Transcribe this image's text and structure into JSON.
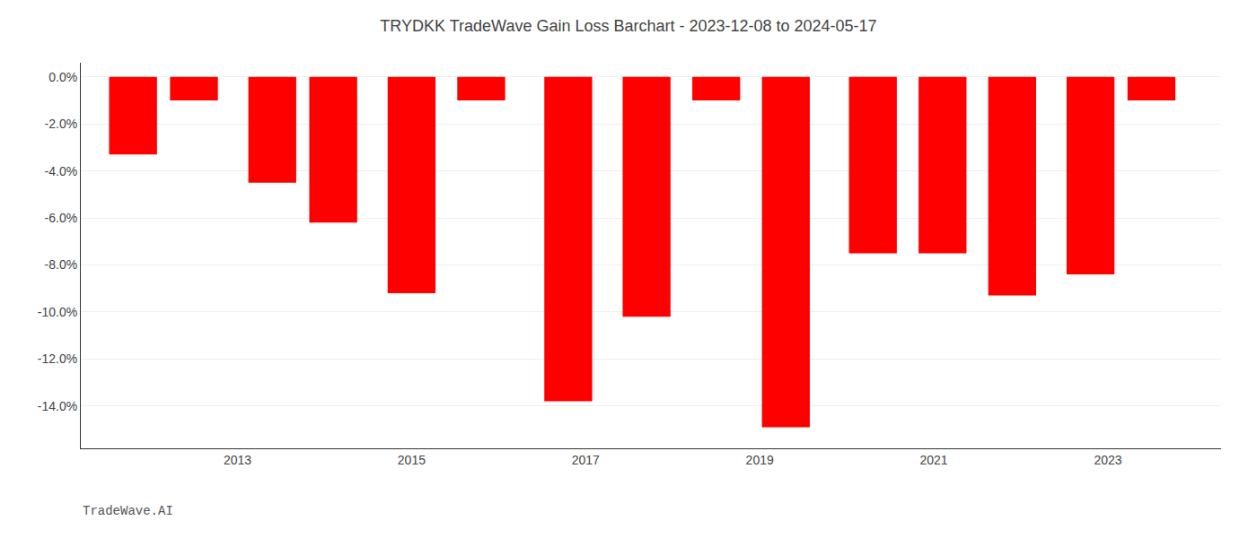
{
  "chart_data": {
    "type": "bar",
    "title": "TRYDKK TradeWave Gain Loss Barchart - 2023-12-08 to 2024-05-17",
    "annotations": [
      "TradeWave.AI"
    ],
    "x": [
      2011.8,
      2012.5,
      2013.4,
      2014.1,
      2015.0,
      2015.8,
      2016.8,
      2017.7,
      2018.5,
      2019.3,
      2020.3,
      2021.1,
      2021.9,
      2022.8,
      2023.5
    ],
    "values": [
      -3.3,
      -1.0,
      -4.5,
      -6.2,
      -9.2,
      -1.0,
      -13.8,
      -10.2,
      -1.0,
      -14.9,
      -7.5,
      -7.5,
      -9.3,
      -8.4,
      -1.0
    ],
    "color": "#ff0000",
    "xlim": [
      2011.2,
      2024.3
    ],
    "xticks": [
      2013,
      2015,
      2017,
      2019,
      2021,
      2023
    ],
    "ylim": [
      -15.8,
      0.6
    ],
    "yticks": [
      {
        "value": 0.0,
        "label": "0.0%"
      },
      {
        "value": -2.0,
        "label": "-2.0%"
      },
      {
        "value": -4.0,
        "label": "-4.0%"
      },
      {
        "value": -6.0,
        "label": "-6.0%"
      },
      {
        "value": -8.0,
        "label": "-8.0%"
      },
      {
        "value": -10.0,
        "label": "-10.0%"
      },
      {
        "value": -12.0,
        "label": "-12.0%"
      },
      {
        "value": -14.0,
        "label": "-14.0%"
      }
    ],
    "grid": true
  }
}
